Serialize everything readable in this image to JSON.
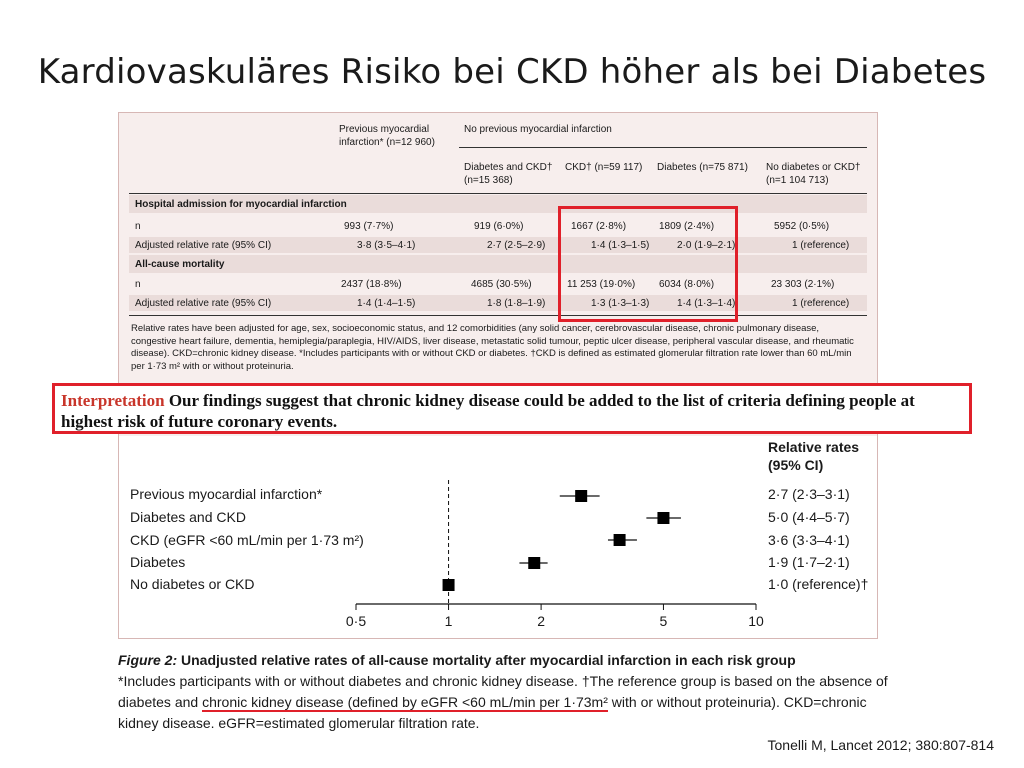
{
  "title": "Kardiovaskuläres Risiko bei CKD höher als bei Diabetes",
  "table": {
    "col_prev_mi": "Previous myocardial infarction* (n=12 960)",
    "col_no_prev_mi": "No previous myocardial infarction",
    "sub_cols": [
      "Diabetes and CKD† (n=15 368)",
      "CKD† (n=59 117)",
      "Diabetes (n=75 871)",
      "No diabetes or CKD† (n=1 104 713)"
    ],
    "section1": "Hospital admission for myocardial infarction",
    "section2": "All-cause mortality",
    "rows": [
      {
        "label": "n",
        "cells": [
          "993 (7·7%)",
          "919 (6·0%)",
          "1667 (2·8%)",
          "1809 (2·4%)",
          "5952 (0·5%)"
        ]
      },
      {
        "label": "Adjusted relative rate (95% CI)",
        "cells": [
          "3·8 (3·5–4·1)",
          "2·7 (2·5–2·9)",
          "1·4 (1·3–1·5)",
          "2·0 (1·9–2·1)",
          "1 (reference)"
        ]
      },
      {
        "label": "n",
        "cells": [
          "2437 (18·8%)",
          "4685 (30·5%)",
          "11 253 (19·0%)",
          "6034 (8·0%)",
          "23 303 (2·1%)"
        ]
      },
      {
        "label": "Adjusted relative rate (95% CI)",
        "cells": [
          "1·4 (1·4–1·5)",
          "1·8 (1·8–1·9)",
          "1·3 (1·3–1·3)",
          "1·4 (1·3–1·4)",
          "1 (reference)"
        ]
      }
    ],
    "footnote": "Relative rates have been adjusted for age, sex, socioeconomic status, and 12 comorbidities (any solid cancer, cerebrovascular disease, chronic pulmonary disease, congestive heart failure, dementia, hemiplegia/paraplegia, HIV/AIDS, liver disease, metastatic solid tumour, peptic ulcer disease, peripheral vascular disease, and rheumatic disease). CKD=chronic kidney disease. *Includes participants with or without CKD or diabetes. †CKD is defined as estimated glomerular filtration rate lower than 60 mL/min per 1·73 m² with or without proteinuria."
  },
  "interpretation": {
    "label": "Interpretation",
    "text": "Our findings suggest that chronic kidney disease could be added to the list of criteria defining people at highest risk of future coronary events."
  },
  "forest": {
    "rates_header": "Relative rates (95% CI)",
    "rows": [
      {
        "label": "Previous myocardial infarction*",
        "rate_text": "2·7 (2·3–3·1)"
      },
      {
        "label": "Diabetes and CKD",
        "rate_text": "5·0 (4·4–5·7)"
      },
      {
        "label": "CKD (eGFR <60 mL/min per 1·73 m²)",
        "rate_text": "3·6 (3·3–4·1)"
      },
      {
        "label": "Diabetes",
        "rate_text": "1·9 (1·7–2·1)"
      },
      {
        "label": "No diabetes or CKD",
        "rate_text": "1·0 (reference)†"
      }
    ],
    "tick_labels": [
      "0·5",
      "1",
      "2",
      "5",
      "10"
    ]
  },
  "chart_data": {
    "type": "forest",
    "scale": "log",
    "xlim": [
      0.5,
      10
    ],
    "x_ticks": [
      0.5,
      1,
      2,
      5,
      10
    ],
    "reference_line": 1,
    "categories": [
      "Previous myocardial infarction*",
      "Diabetes and CKD",
      "CKD (eGFR <60 mL/min per 1·73 m²)",
      "Diabetes",
      "No diabetes or CKD"
    ],
    "estimates": [
      2.7,
      5.0,
      3.6,
      1.9,
      1.0
    ],
    "ci_low": [
      2.3,
      4.4,
      3.3,
      1.7,
      1.0
    ],
    "ci_high": [
      3.1,
      5.7,
      4.1,
      2.1,
      1.0
    ]
  },
  "caption": {
    "fig_label": "Figure 2:",
    "fig_title": "Unadjusted relative rates of all-cause mortality after myocardial infarction in each risk group",
    "text_a": "*Includes participants with or without diabetes and chronic kidney disease. †The reference group is based on the absence of diabetes and ",
    "text_underlined": "chronic kidney disease (defined by eGFR <60 mL/min per 1·73m²",
    "text_b": " with or without proteinuria). CKD=chronic kidney disease. eGFR=estimated glomerular filtration rate."
  },
  "citation": "Tonelli M, Lancet 2012; 380:807-814",
  "colors": {
    "highlight": "#e0202a",
    "panel_bg": "#f7eeed",
    "band_bg": "#eadcda"
  }
}
